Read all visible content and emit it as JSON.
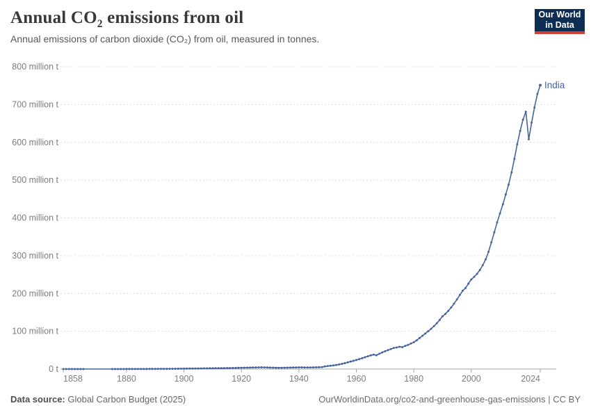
{
  "header": {
    "title_prefix": "Annual CO",
    "title_sub": "2",
    "title_suffix": " emissions from oil",
    "subtitle": "Annual emissions of carbon dioxide (CO₂) from oil, measured in tonnes.",
    "logo": {
      "line1": "Our World",
      "line2": "in Data",
      "bg_color": "#0d2e52",
      "accent_color": "#d43f33"
    }
  },
  "footer": {
    "source_label": "Data source:",
    "source_value": " Global Carbon Budget (2025)",
    "credit": "OurWorldinData.org/co2-and-greenhouse-gas-emissions | CC BY"
  },
  "chart_data": {
    "type": "line",
    "title": "Annual CO₂ emissions from oil",
    "subtitle": "Annual emissions of carbon dioxide (CO₂) from oil, measured in tonnes.",
    "unit": "million t",
    "xlabel": "",
    "ylabel": "",
    "xlim": [
      1858,
      2024
    ],
    "ylim": [
      0,
      800
    ],
    "grid": true,
    "gridline_color": "#dcdee3",
    "zero_line_color": "#a5a5a5",
    "legend_position": "end-of-line",
    "yticks": [
      {
        "value": 0,
        "label": "0 t"
      },
      {
        "value": 100,
        "label": "100 million t"
      },
      {
        "value": 200,
        "label": "200 million t"
      },
      {
        "value": 300,
        "label": "300 million t"
      },
      {
        "value": 400,
        "label": "400 million t"
      },
      {
        "value": 500,
        "label": "500 million t"
      },
      {
        "value": 600,
        "label": "600 million t"
      },
      {
        "value": 700,
        "label": "700 million t"
      },
      {
        "value": 800,
        "label": "800 million t"
      }
    ],
    "xticks": [
      {
        "year": 1858,
        "label": "1858"
      },
      {
        "year": 1880,
        "label": "1880"
      },
      {
        "year": 1900,
        "label": "1900"
      },
      {
        "year": 1920,
        "label": "1920"
      },
      {
        "year": 1940,
        "label": "1940"
      },
      {
        "year": 1960,
        "label": "1960"
      },
      {
        "year": 1980,
        "label": "1980"
      },
      {
        "year": 2000,
        "label": "2000"
      },
      {
        "year": 2024,
        "label": "2024"
      }
    ],
    "series": [
      {
        "name": "India",
        "color": "#47639e",
        "points": [
          [
            1858,
            0.02
          ],
          [
            1859,
            0.02
          ],
          [
            1860,
            0.03
          ],
          [
            1861,
            0.03
          ],
          [
            1862,
            0.03
          ],
          [
            1863,
            0.04
          ],
          [
            1864,
            0.04
          ],
          [
            1865,
            0.05
          ],
          [
            1875,
            0.05
          ],
          [
            1876,
            0.06
          ],
          [
            1877,
            0.07
          ],
          [
            1878,
            0.08
          ],
          [
            1879,
            0.09
          ],
          [
            1880,
            0.1
          ],
          [
            1881,
            0.12
          ],
          [
            1882,
            0.14
          ],
          [
            1883,
            0.16
          ],
          [
            1884,
            0.18
          ],
          [
            1885,
            0.21
          ],
          [
            1886,
            0.24
          ],
          [
            1887,
            0.27
          ],
          [
            1888,
            0.3
          ],
          [
            1889,
            0.34
          ],
          [
            1890,
            0.38
          ],
          [
            1891,
            0.42
          ],
          [
            1892,
            0.47
          ],
          [
            1893,
            0.52
          ],
          [
            1894,
            0.58
          ],
          [
            1895,
            0.64
          ],
          [
            1896,
            0.71
          ],
          [
            1897,
            0.78
          ],
          [
            1898,
            0.86
          ],
          [
            1899,
            0.95
          ],
          [
            1900,
            1.05
          ],
          [
            1901,
            1.15
          ],
          [
            1902,
            1.25
          ],
          [
            1903,
            1.35
          ],
          [
            1904,
            1.45
          ],
          [
            1905,
            1.55
          ],
          [
            1906,
            1.65
          ],
          [
            1907,
            1.75
          ],
          [
            1908,
            1.85
          ],
          [
            1909,
            1.95
          ],
          [
            1910,
            2.05
          ],
          [
            1911,
            2.15
          ],
          [
            1912,
            2.25
          ],
          [
            1913,
            2.35
          ],
          [
            1914,
            2.45
          ],
          [
            1915,
            2.55
          ],
          [
            1916,
            2.65
          ],
          [
            1917,
            2.75
          ],
          [
            1918,
            2.9
          ],
          [
            1919,
            3.1
          ],
          [
            1920,
            3.3
          ],
          [
            1921,
            3.5
          ],
          [
            1922,
            3.7
          ],
          [
            1923,
            3.9
          ],
          [
            1924,
            4.1
          ],
          [
            1925,
            4.3
          ],
          [
            1926,
            4.45
          ],
          [
            1927,
            4.55
          ],
          [
            1928,
            4.45
          ],
          [
            1929,
            4.25
          ],
          [
            1930,
            3.9
          ],
          [
            1931,
            3.6
          ],
          [
            1932,
            3.4
          ],
          [
            1933,
            3.3
          ],
          [
            1934,
            3.4
          ],
          [
            1935,
            3.5
          ],
          [
            1936,
            3.65
          ],
          [
            1937,
            3.8
          ],
          [
            1938,
            4.0
          ],
          [
            1939,
            4.2
          ],
          [
            1940,
            4.4
          ],
          [
            1941,
            4.5
          ],
          [
            1942,
            4.3
          ],
          [
            1943,
            4.1
          ],
          [
            1944,
            4.25
          ],
          [
            1945,
            4.4
          ],
          [
            1946,
            4.6
          ],
          [
            1947,
            4.8
          ],
          [
            1948,
            5.0
          ],
          [
            1949,
            6.8
          ],
          [
            1950,
            7.8
          ],
          [
            1951,
            8.6
          ],
          [
            1952,
            9.5
          ],
          [
            1953,
            10.8
          ],
          [
            1954,
            12.2
          ],
          [
            1955,
            13.8
          ],
          [
            1956,
            15.6
          ],
          [
            1957,
            17.6
          ],
          [
            1958,
            19.6
          ],
          [
            1959,
            21.8
          ],
          [
            1960,
            24.0
          ],
          [
            1961,
            26.2
          ],
          [
            1962,
            28.6
          ],
          [
            1963,
            31.2
          ],
          [
            1964,
            33.8
          ],
          [
            1965,
            36.2
          ],
          [
            1966,
            38.2
          ],
          [
            1967,
            36.6
          ],
          [
            1968,
            40.4
          ],
          [
            1969,
            44.0
          ],
          [
            1970,
            47.0
          ],
          [
            1971,
            50.0
          ],
          [
            1972,
            53.0
          ],
          [
            1973,
            55.8
          ],
          [
            1974,
            57.0
          ],
          [
            1975,
            58.8
          ],
          [
            1976,
            57.8
          ],
          [
            1977,
            61.5
          ],
          [
            1978,
            64.0
          ],
          [
            1979,
            67.5
          ],
          [
            1980,
            71.0
          ],
          [
            1981,
            76.0
          ],
          [
            1982,
            82.0
          ],
          [
            1983,
            88.0
          ],
          [
            1984,
            94.0
          ],
          [
            1985,
            100.0
          ],
          [
            1986,
            106.5
          ],
          [
            1987,
            113.5
          ],
          [
            1988,
            121.0
          ],
          [
            1989,
            130.0
          ],
          [
            1990,
            139.5
          ],
          [
            1991,
            146.0
          ],
          [
            1992,
            154.0
          ],
          [
            1993,
            163.0
          ],
          [
            1994,
            173.0
          ],
          [
            1995,
            184.0
          ],
          [
            1996,
            196.0
          ],
          [
            1997,
            207.0
          ],
          [
            1998,
            214.5
          ],
          [
            1999,
            226.0
          ],
          [
            2000,
            237.0
          ],
          [
            2001,
            244.0
          ],
          [
            2002,
            252.0
          ],
          [
            2003,
            262.0
          ],
          [
            2004,
            275.0
          ],
          [
            2005,
            290.0
          ],
          [
            2006,
            310.0
          ],
          [
            2007,
            335.0
          ],
          [
            2008,
            362.0
          ],
          [
            2009,
            388.0
          ],
          [
            2010,
            412.0
          ],
          [
            2011,
            436.0
          ],
          [
            2012,
            462.0
          ],
          [
            2013,
            488.0
          ],
          [
            2014,
            520.0
          ],
          [
            2015,
            556.0
          ],
          [
            2016,
            595.0
          ],
          [
            2017,
            630.0
          ],
          [
            2018,
            660.0
          ],
          [
            2019,
            681.0
          ],
          [
            2020,
            608.0
          ],
          [
            2021,
            652.0
          ],
          [
            2022,
            692.0
          ],
          [
            2023,
            728.0
          ],
          [
            2024,
            751.0
          ]
        ]
      }
    ]
  }
}
